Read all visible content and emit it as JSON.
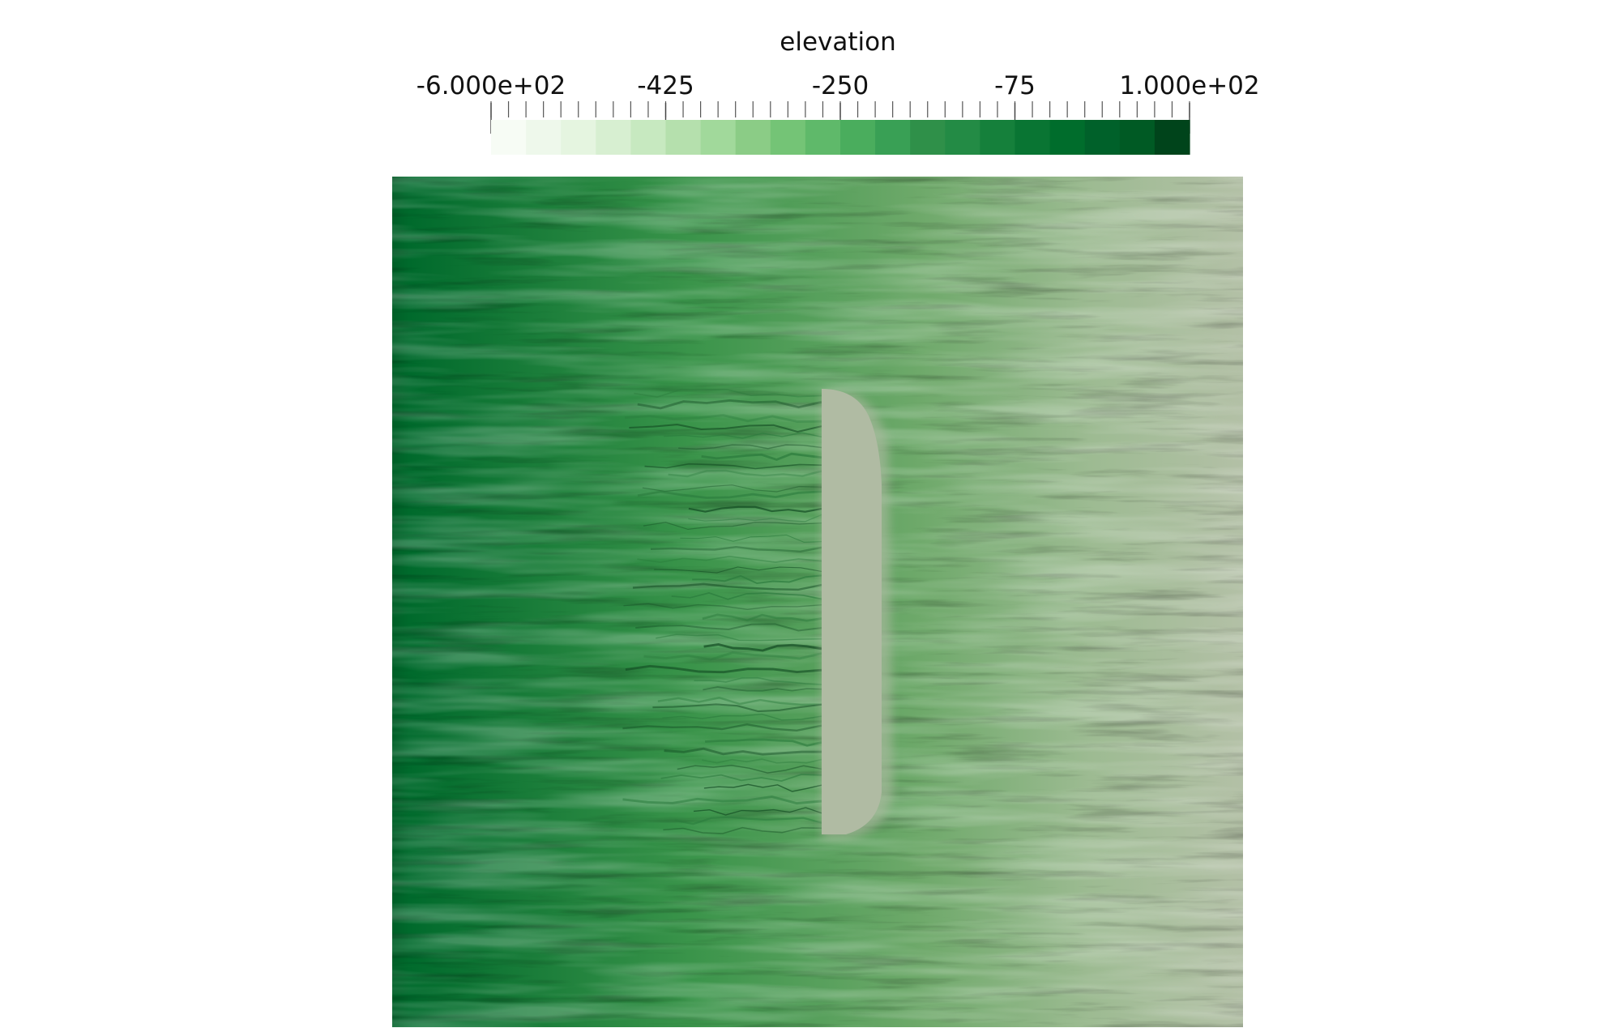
{
  "colorbar": {
    "title": "elevation",
    "range": [
      -600,
      100
    ],
    "tick_labels": [
      {
        "value": -600,
        "label": "-6.000e+02"
      },
      {
        "value": -425,
        "label": "-425"
      },
      {
        "value": -250,
        "label": "-250"
      },
      {
        "value": -75,
        "label": "-75"
      },
      {
        "value": 100,
        "label": "1.000e+02"
      }
    ],
    "minor_tick_count": 41,
    "bands": [
      "#f7fcf5",
      "#eef8eb",
      "#e5f5e0",
      "#d7efd1",
      "#c7e9c0",
      "#b5e0ad",
      "#a1d99b",
      "#8bcc86",
      "#74c476",
      "#5fb96a",
      "#4aad5d",
      "#39a055",
      "#2f9049",
      "#238b45",
      "#15803b",
      "#097533",
      "#006d2c",
      "#00612a",
      "#005a24",
      "#00441b"
    ]
  },
  "terrain": {
    "low_color": "#006a2c",
    "mid_color": "#3a944a",
    "high_color": "#b3c0a6",
    "plateau_color": "#b0bba3"
  }
}
